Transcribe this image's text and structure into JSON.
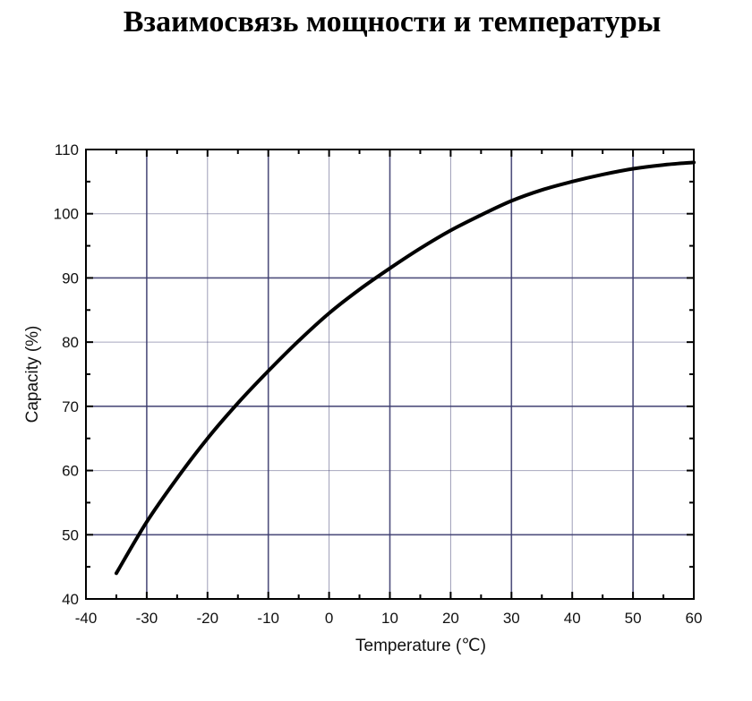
{
  "chart_data": {
    "type": "line",
    "title": "Взаимосвязь мощности и температуры",
    "xlabel": "Temperature (℃)",
    "ylabel": "Capacity (%)",
    "xlim": [
      -40,
      60
    ],
    "ylim": [
      40,
      110
    ],
    "xticks": [
      "-40",
      "-30",
      "-20",
      "-10",
      "0",
      "10",
      "20",
      "30",
      "40",
      "50",
      "60"
    ],
    "yticks": [
      "40",
      "50",
      "60",
      "70",
      "80",
      "90",
      "100",
      "110"
    ],
    "grid": true,
    "grid_color": "#3c3c70",
    "line_color": "#000000",
    "series": [
      {
        "x": [
          -35,
          -30,
          -25,
          -20,
          -15,
          -10,
          -5,
          0,
          5,
          10,
          15,
          20,
          25,
          30,
          35,
          40,
          45,
          50,
          55,
          60
        ],
        "values": [
          44,
          52,
          58.8,
          65,
          70.5,
          75.5,
          80.2,
          84.5,
          88.2,
          91.5,
          94.6,
          97.4,
          99.8,
          102,
          103.7,
          105,
          106.1,
          107,
          107.6,
          108
        ]
      }
    ]
  }
}
